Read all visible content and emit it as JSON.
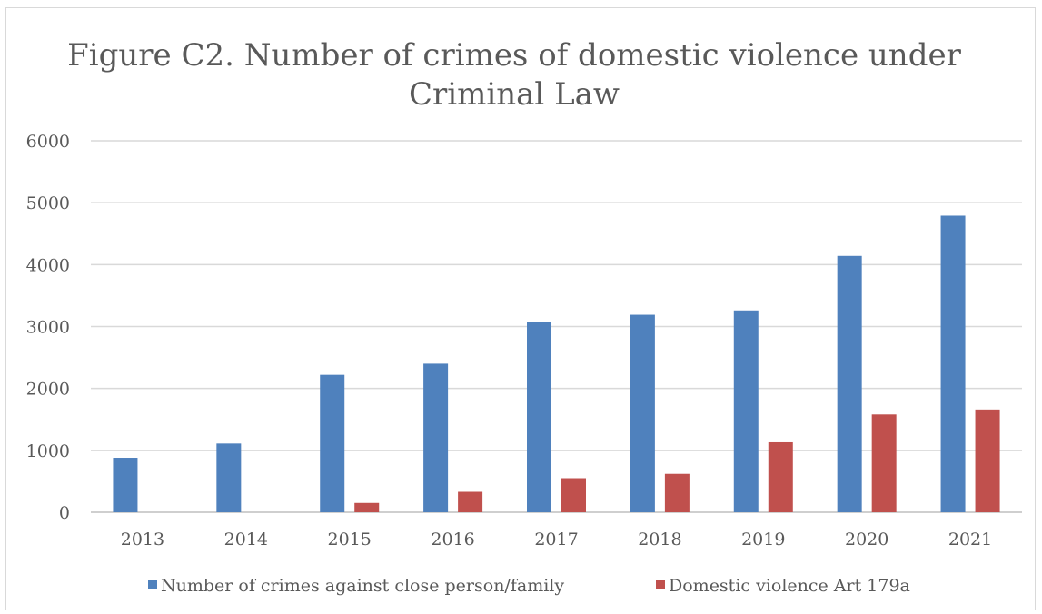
{
  "chart_data": {
    "type": "bar",
    "title_lines": [
      "Figure C2. Number of  crimes of domestic violence under",
      "Criminal Law"
    ],
    "categories": [
      "2013",
      "2014",
      "2015",
      "2016",
      "2017",
      "2018",
      "2019",
      "2020",
      "2021"
    ],
    "series": [
      {
        "name": "Number of crimes against close person/family",
        "color": "#4f81bd",
        "values": [
          880,
          1110,
          2220,
          2400,
          3070,
          3190,
          3260,
          4140,
          4790
        ]
      },
      {
        "name": "Domestic violence Art 179a",
        "color": "#c0504d",
        "values": [
          null,
          null,
          150,
          330,
          550,
          620,
          1130,
          1580,
          1660
        ]
      }
    ],
    "yticks": [
      "0",
      "1000",
      "2000",
      "3000",
      "4000",
      "5000",
      "6000"
    ],
    "ylim": [
      0,
      6000
    ],
    "xlabel": "",
    "ylabel": "",
    "grid": true,
    "legend_position": "bottom"
  }
}
